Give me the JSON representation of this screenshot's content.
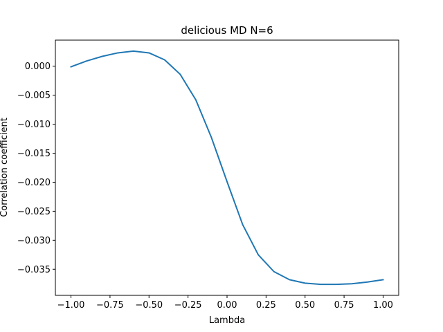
{
  "chart_data": {
    "type": "line",
    "title": "delicious MD N=6",
    "xlabel": "Lambda",
    "ylabel": "Correlation coefficient",
    "xlim": [
      -1.1,
      1.1
    ],
    "ylim": [
      -0.0395,
      0.0045
    ],
    "xticks": [
      -1.0,
      -0.75,
      -0.5,
      -0.25,
      0.0,
      0.25,
      0.5,
      0.75,
      1.0
    ],
    "xtick_labels": [
      "−1.00",
      "−0.75",
      "−0.50",
      "−0.25",
      "0.00",
      "0.25",
      "0.50",
      "0.75",
      "1.00"
    ],
    "yticks": [
      0.0,
      -0.005,
      -0.01,
      -0.015,
      -0.02,
      -0.025,
      -0.03,
      -0.035
    ],
    "ytick_labels": [
      "0.000",
      "−0.005",
      "−0.010",
      "−0.015",
      "−0.020",
      "−0.025",
      "−0.030",
      "−0.035"
    ],
    "grid": false,
    "line_color": "#1f77b4",
    "series": [
      {
        "x": [
          -1.0,
          -0.9,
          -0.8,
          -0.7,
          -0.6,
          -0.5,
          -0.4,
          -0.3,
          -0.2,
          -0.1,
          0.0,
          0.1,
          0.2,
          0.3,
          0.4,
          0.5,
          0.6,
          0.7,
          0.8,
          0.9,
          1.0
        ],
        "values": [
          -0.0001,
          0.0009,
          0.0017,
          0.0023,
          0.0026,
          0.0023,
          0.0011,
          -0.0014,
          -0.0058,
          -0.0123,
          -0.0199,
          -0.0273,
          -0.0325,
          -0.0354,
          -0.0368,
          -0.0374,
          -0.0376,
          -0.0376,
          -0.0375,
          -0.0372,
          -0.0368
        ]
      }
    ]
  }
}
